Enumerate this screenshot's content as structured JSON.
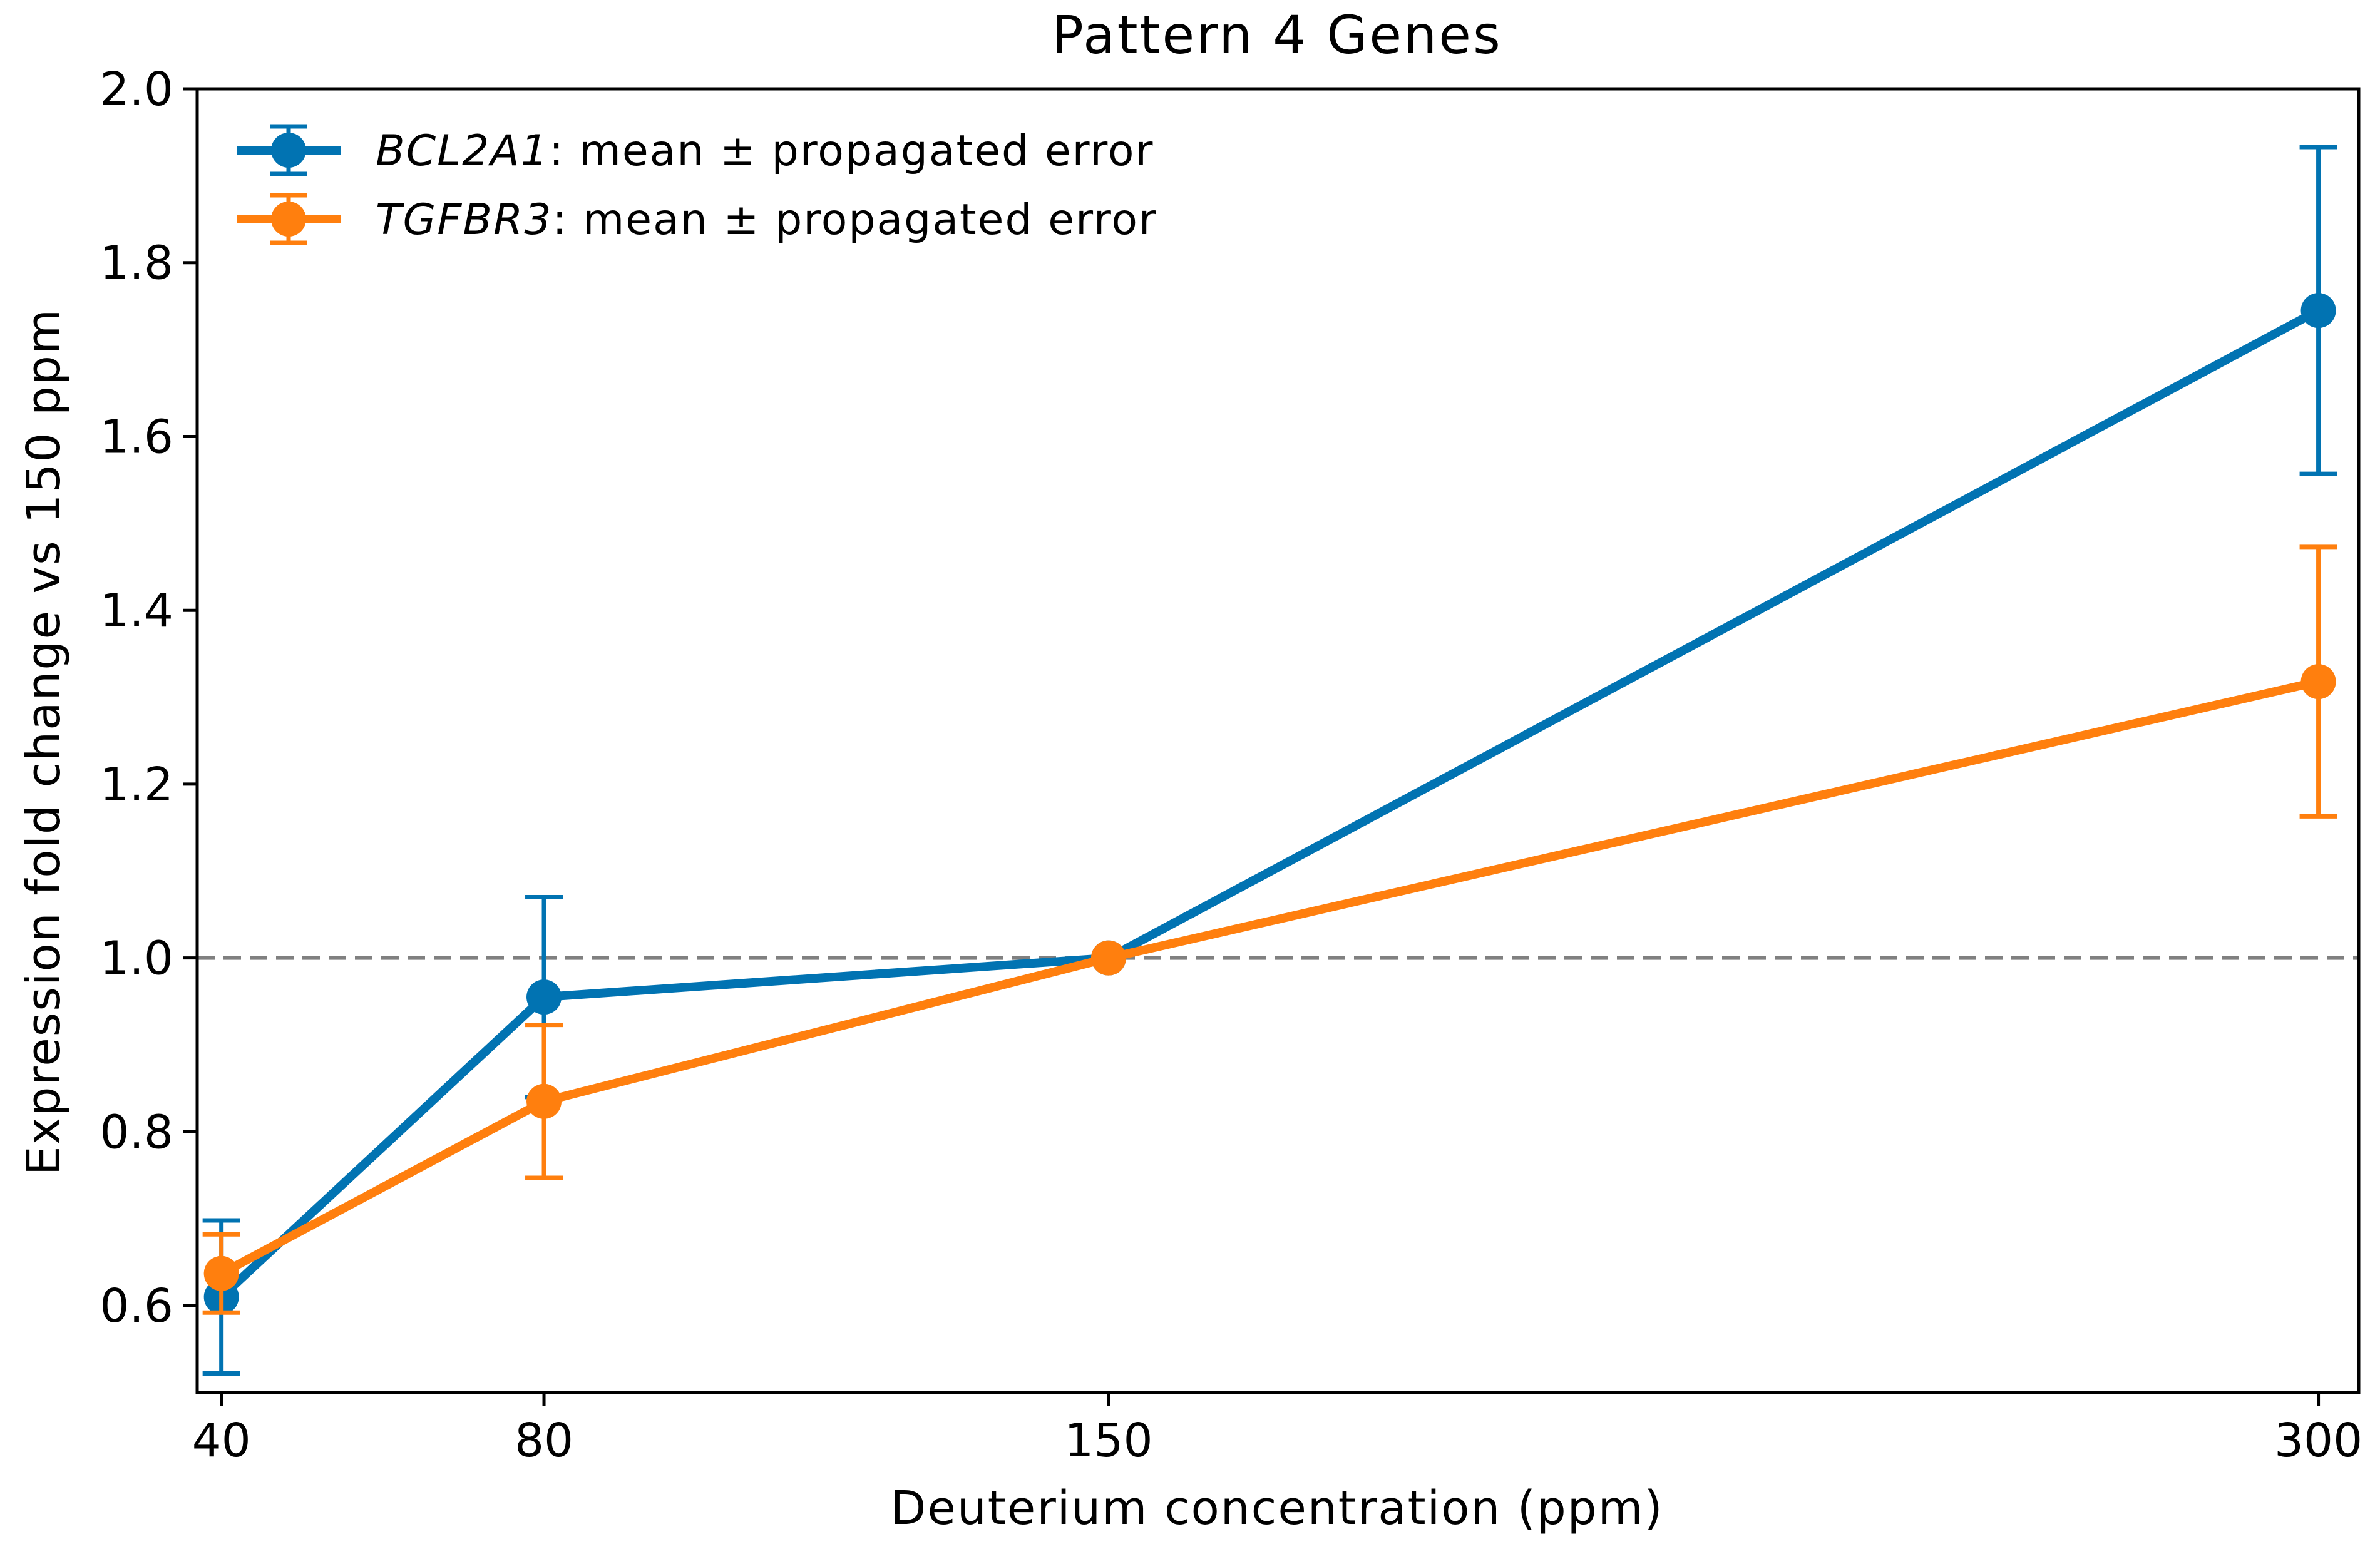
{
  "chart_data": {
    "type": "line",
    "title": "Pattern 4 Genes",
    "xlabel": "Deuterium concentration (ppm)",
    "ylabel": "Expression fold change vs 150 ppm",
    "x": [
      40,
      80,
      150,
      300
    ],
    "x_tick_labels": [
      "40",
      "80",
      "150",
      "300"
    ],
    "xlim": [
      37,
      305
    ],
    "ylim": [
      0.5,
      2.0
    ],
    "y_ticks": [
      0.6,
      0.8,
      1.0,
      1.2,
      1.4,
      1.6,
      1.8,
      2.0
    ],
    "y_tick_labels": [
      "0.6",
      "0.8",
      "1.0",
      "1.2",
      "1.4",
      "1.6",
      "1.8",
      "2.0"
    ],
    "reference_line": {
      "y": 1.0,
      "style": "dashed",
      "color": "#808080"
    },
    "grid": false,
    "legend_position": "top-left",
    "series": [
      {
        "name": "BCL2A1: mean ± propagated error",
        "gene": "BCL2A1",
        "suffix": ": mean ±  propagated error",
        "color": "#0173b2",
        "values": [
          0.61,
          0.955,
          1.0,
          1.745
        ],
        "errors": [
          0.088,
          0.115,
          0.0,
          0.188
        ]
      },
      {
        "name": "TGFBR3: mean ± propagated error",
        "gene": "TGFBR3",
        "suffix": ": mean ±  propagated error",
        "color": "#ff7f0e",
        "values": [
          0.637,
          0.835,
          1.0,
          1.318
        ],
        "errors": [
          0.045,
          0.088,
          0.0,
          0.155
        ]
      }
    ]
  }
}
